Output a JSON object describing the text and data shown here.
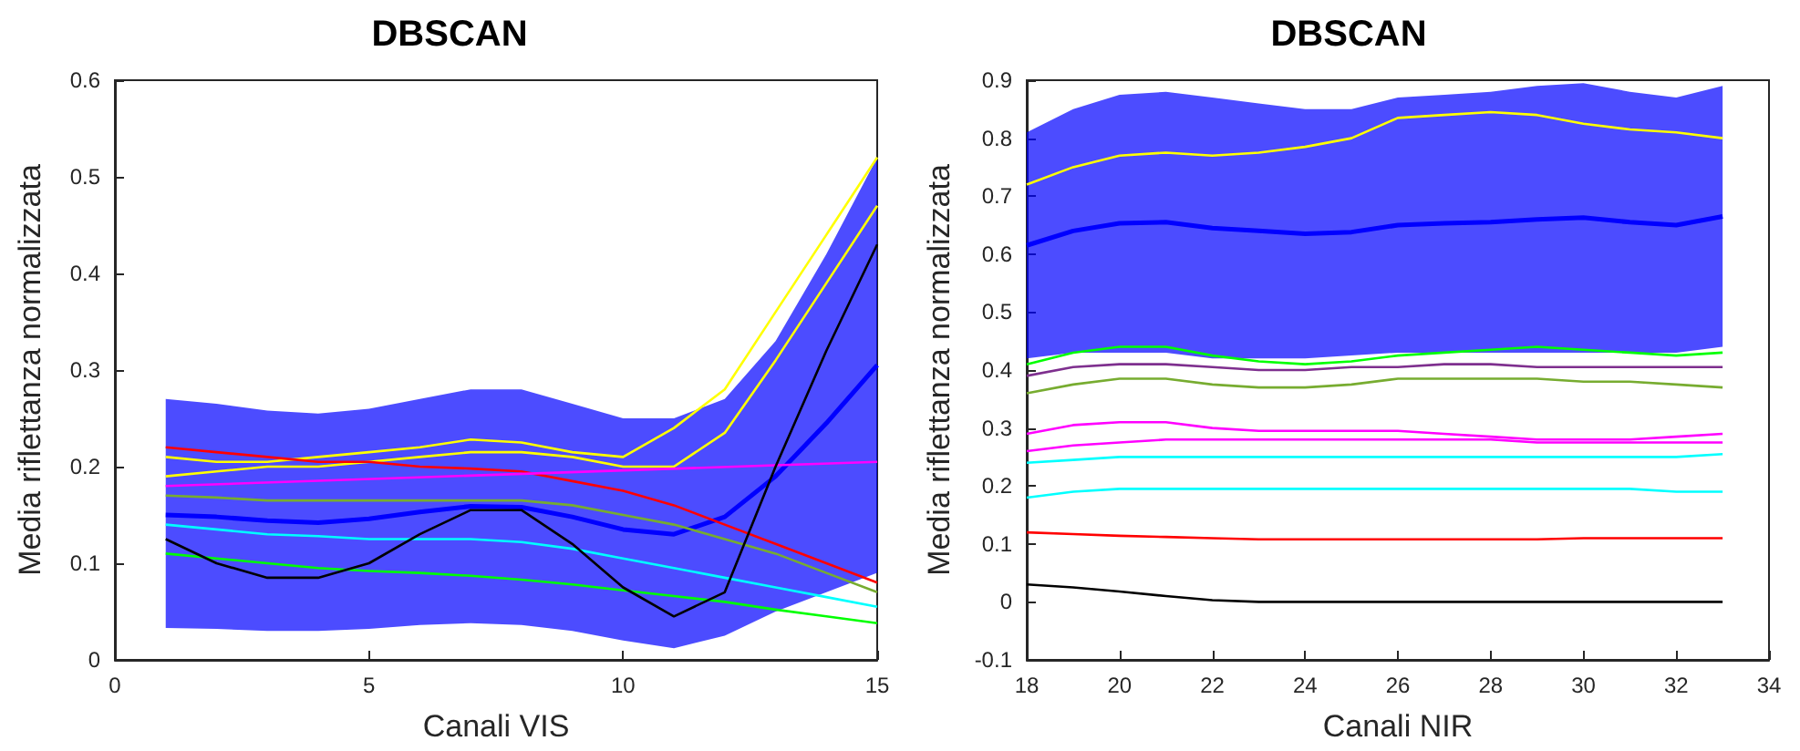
{
  "chart_data": [
    {
      "type": "line",
      "title": "DBSCAN",
      "xlabel": "Canali VIS",
      "ylabel": "Media riflettanza normalizzata",
      "xlim": [
        0,
        15
      ],
      "xticks": [
        0,
        5,
        10,
        15
      ],
      "ylim": [
        0,
        0.6
      ],
      "yticks": [
        0,
        0.1,
        0.2,
        0.3,
        0.4,
        0.5,
        0.6
      ],
      "grid": false,
      "x": [
        1,
        2,
        3,
        4,
        5,
        6,
        7,
        8,
        9,
        10,
        11,
        12,
        13,
        14,
        15
      ],
      "series": [
        {
          "color": "#0000ff",
          "values": [
            0.15,
            0.148,
            0.144,
            0.142,
            0.146,
            0.153,
            0.159,
            0.158,
            0.148,
            0.135,
            0.13,
            0.148,
            0.19,
            0.245,
            0.305
          ],
          "lower": [
            0.033,
            0.032,
            0.03,
            0.03,
            0.032,
            0.036,
            0.038,
            0.036,
            0.03,
            0.02,
            0.012,
            0.025,
            0.05,
            0.07,
            0.09
          ],
          "upper": [
            0.27,
            0.265,
            0.258,
            0.255,
            0.26,
            0.27,
            0.28,
            0.28,
            0.265,
            0.25,
            0.25,
            0.27,
            0.33,
            0.42,
            0.52
          ]
        },
        {
          "color": "#ffff00",
          "values": [
            0.21,
            0.205,
            0.205,
            0.21,
            0.215,
            0.22,
            0.228,
            0.225,
            0.215,
            0.21,
            0.24,
            0.28,
            0.36,
            0.44,
            0.52
          ]
        },
        {
          "color": "#ffff00",
          "values": [
            0.19,
            0.195,
            0.2,
            0.2,
            0.205,
            0.21,
            0.215,
            0.215,
            0.21,
            0.2,
            0.2,
            0.235,
            0.31,
            0.39,
            0.47
          ]
        },
        {
          "color": "#ff0000",
          "values": [
            0.22,
            0.215,
            0.21,
            0.205,
            0.205,
            0.2,
            0.198,
            0.195,
            0.185,
            0.175,
            0.16,
            0.14,
            0.12,
            0.1,
            0.08
          ]
        },
        {
          "color": "#ff00ff",
          "x": [
            1,
            15
          ],
          "values": [
            0.18,
            0.205
          ]
        },
        {
          "color": "#77ac30",
          "values": [
            0.17,
            0.168,
            0.165,
            0.165,
            0.165,
            0.165,
            0.165,
            0.165,
            0.16,
            0.15,
            0.14,
            0.125,
            0.11,
            0.09,
            0.07
          ]
        },
        {
          "color": "#00ffff",
          "values": [
            0.14,
            0.135,
            0.13,
            0.128,
            0.125,
            0.125,
            0.125,
            0.122,
            0.115,
            0.105,
            0.095,
            0.085,
            0.075,
            0.065,
            0.055
          ]
        },
        {
          "color": "#00ff00",
          "values": [
            0.11,
            0.105,
            0.1,
            0.095,
            0.092,
            0.09,
            0.087,
            0.083,
            0.078,
            0.072,
            0.066,
            0.06,
            0.052,
            0.045,
            0.038
          ]
        },
        {
          "color": "#000000",
          "values": [
            0.125,
            0.1,
            0.085,
            0.085,
            0.1,
            0.13,
            0.155,
            0.155,
            0.12,
            0.075,
            0.045,
            0.07,
            0.2,
            0.32,
            0.43
          ]
        }
      ]
    },
    {
      "type": "line",
      "title": "DBSCAN",
      "xlabel": "Canali NIR",
      "ylabel": "Media riflettanza normalizzata",
      "xlim": [
        18,
        34
      ],
      "xticks": [
        18,
        20,
        22,
        24,
        26,
        28,
        30,
        32,
        34
      ],
      "ylim": [
        -0.1,
        0.9
      ],
      "yticks": [
        -0.1,
        0,
        0.1,
        0.2,
        0.3,
        0.4,
        0.5,
        0.6,
        0.7,
        0.8,
        0.9
      ],
      "grid": false,
      "x": [
        18,
        19,
        20,
        21,
        22,
        23,
        24,
        25,
        26,
        27,
        28,
        29,
        30,
        31,
        32,
        33
      ],
      "series": [
        {
          "color": "#0000ff",
          "values": [
            0.615,
            0.64,
            0.653,
            0.655,
            0.645,
            0.64,
            0.635,
            0.638,
            0.65,
            0.653,
            0.655,
            0.66,
            0.663,
            0.655,
            0.65,
            0.665
          ],
          "lower": [
            0.42,
            0.43,
            0.43,
            0.43,
            0.42,
            0.42,
            0.42,
            0.425,
            0.43,
            0.43,
            0.43,
            0.43,
            0.43,
            0.43,
            0.43,
            0.44
          ],
          "upper": [
            0.81,
            0.85,
            0.875,
            0.88,
            0.87,
            0.86,
            0.85,
            0.85,
            0.87,
            0.875,
            0.88,
            0.89,
            0.895,
            0.88,
            0.87,
            0.89
          ]
        },
        {
          "color": "#ffff00",
          "values": [
            0.72,
            0.75,
            0.77,
            0.775,
            0.77,
            0.775,
            0.785,
            0.8,
            0.835,
            0.84,
            0.845,
            0.84,
            0.825,
            0.815,
            0.81,
            0.8
          ]
        },
        {
          "color": "#00ff00",
          "values": [
            0.41,
            0.43,
            0.44,
            0.44,
            0.425,
            0.415,
            0.41,
            0.415,
            0.425,
            0.43,
            0.435,
            0.44,
            0.435,
            0.43,
            0.425,
            0.43
          ]
        },
        {
          "color": "#7e2f8e",
          "values": [
            0.39,
            0.405,
            0.41,
            0.41,
            0.405,
            0.4,
            0.4,
            0.405,
            0.405,
            0.41,
            0.41,
            0.405,
            0.405,
            0.405,
            0.405,
            0.405
          ]
        },
        {
          "color": "#77ac30",
          "values": [
            0.36,
            0.375,
            0.385,
            0.385,
            0.375,
            0.37,
            0.37,
            0.375,
            0.385,
            0.385,
            0.385,
            0.385,
            0.38,
            0.38,
            0.375,
            0.37
          ]
        },
        {
          "color": "#ff00ff",
          "values": [
            0.29,
            0.305,
            0.31,
            0.31,
            0.3,
            0.295,
            0.295,
            0.295,
            0.295,
            0.29,
            0.285,
            0.28,
            0.28,
            0.28,
            0.285,
            0.29
          ]
        },
        {
          "color": "#ff00ff",
          "values": [
            0.26,
            0.27,
            0.275,
            0.28,
            0.28,
            0.28,
            0.28,
            0.28,
            0.28,
            0.28,
            0.28,
            0.275,
            0.275,
            0.275,
            0.275,
            0.275
          ]
        },
        {
          "color": "#00ffff",
          "values": [
            0.24,
            0.245,
            0.25,
            0.25,
            0.25,
            0.25,
            0.25,
            0.25,
            0.25,
            0.25,
            0.25,
            0.25,
            0.25,
            0.25,
            0.25,
            0.255
          ]
        },
        {
          "color": "#00ffff",
          "values": [
            0.18,
            0.19,
            0.195,
            0.195,
            0.195,
            0.195,
            0.195,
            0.195,
            0.195,
            0.195,
            0.195,
            0.195,
            0.195,
            0.195,
            0.19,
            0.19
          ]
        },
        {
          "color": "#ff0000",
          "values": [
            0.12,
            0.117,
            0.114,
            0.112,
            0.11,
            0.108,
            0.108,
            0.108,
            0.108,
            0.108,
            0.108,
            0.108,
            0.11,
            0.11,
            0.11,
            0.11
          ]
        },
        {
          "color": "#000000",
          "values": [
            0.03,
            0.025,
            0.018,
            0.01,
            0.003,
            0,
            0,
            0,
            0,
            0,
            0,
            0,
            0,
            0,
            0,
            0
          ]
        }
      ]
    }
  ]
}
